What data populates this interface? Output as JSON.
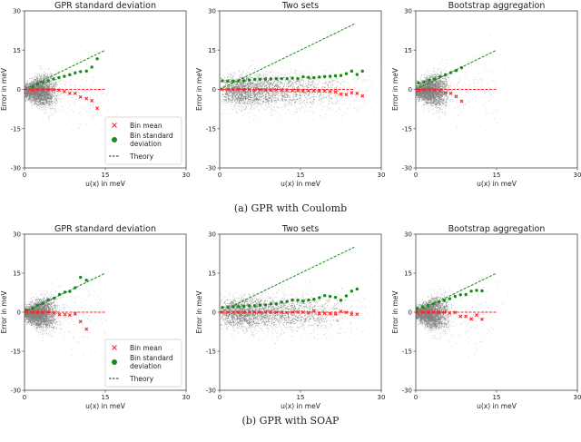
{
  "colors": {
    "scatter": "#808080",
    "bin_mean": "#ff2020",
    "bin_std": "#1a8a1a",
    "theory_std": "#1a8a1a",
    "theory_mean": "#ff2020"
  },
  "captions": [
    "(a) GPR with Coulomb",
    "(b) GPR with SOAP"
  ],
  "legend": {
    "bin_mean": "Bin mean",
    "bin_std_line1": "Bin standard",
    "bin_std_line2": "deviation",
    "theory": "Theory"
  },
  "chart_data": [
    {
      "type": "scatter",
      "row": "a",
      "title": "GPR standard deviation",
      "xlabel": "u(x) in meV",
      "ylabel": "Error in meV",
      "xlim": [
        0,
        30
      ],
      "ylim": [
        -30,
        30
      ],
      "xticks": [
        "0",
        "15",
        "30"
      ],
      "yticks": [
        "30",
        "15",
        "0",
        "-15",
        "-30"
      ],
      "legend": "bottom-right",
      "theory_xmax": 15,
      "bin_x": [
        1.5,
        2.4,
        3.4,
        4.4,
        5.4,
        6.4,
        7.4,
        8.4,
        9.4,
        10.4,
        11.5,
        12.5,
        13.5
      ],
      "bin_std": [
        1.0,
        2.1,
        2.7,
        3.3,
        4.0,
        4.5,
        5.0,
        5.6,
        6.3,
        6.8,
        7.0,
        8.5,
        11.7
      ],
      "bin_mean": [
        -0.3,
        -0.1,
        0,
        -0.1,
        -0.1,
        -0.3,
        -0.8,
        -1.5,
        -1.5,
        -2.9,
        -3.5,
        -4.3,
        -7.2
      ]
    },
    {
      "type": "scatter",
      "row": "a",
      "title": "Two sets",
      "xlabel": "u(x) in meV",
      "ylabel": "Error in meV",
      "xlim": [
        0,
        30
      ],
      "ylim": [
        -30,
        30
      ],
      "xticks": [
        "0",
        "15",
        "30"
      ],
      "yticks": [
        "30",
        "15",
        "0",
        "-15",
        "-30"
      ],
      "theory_xmax": 25,
      "bin_x": [
        0.5,
        1.5,
        2.5,
        3.5,
        4.5,
        5.5,
        6.5,
        7.5,
        8.5,
        9.5,
        10.5,
        11.5,
        12.5,
        13.5,
        14.5,
        15.5,
        16.5,
        17.5,
        18.5,
        19.5,
        20.5,
        21.5,
        22.5,
        23.5,
        24.5,
        25.5,
        26.5
      ],
      "bin_std": [
        3.3,
        3.2,
        3.2,
        3.3,
        3.3,
        3.6,
        3.8,
        3.9,
        3.9,
        4.0,
        4.1,
        4.1,
        4.1,
        4.3,
        4.1,
        4.8,
        4.6,
        4.5,
        4.7,
        4.9,
        5.0,
        5.2,
        5.3,
        6.0,
        7.0,
        5.7,
        7.0
      ],
      "bin_mean": [
        0,
        0,
        0,
        0,
        -0.1,
        -0.1,
        -0.2,
        -0.1,
        -0.2,
        -0.2,
        -0.2,
        -0.3,
        -0.3,
        -0.4,
        -0.4,
        -0.6,
        -0.5,
        -0.6,
        -0.6,
        -0.6,
        -0.8,
        -1.0,
        -1.8,
        -2.0,
        -1.3,
        -1.5,
        -2.5
      ]
    },
    {
      "type": "scatter",
      "row": "a",
      "title": "Bootstrap aggregation",
      "xlabel": "u(x) in meV",
      "ylabel": "Error in meV",
      "xlim": [
        0,
        30
      ],
      "ylim": [
        -30,
        30
      ],
      "xticks": [
        "0",
        "15",
        "30"
      ],
      "yticks": [
        "30",
        "15",
        "0",
        "-15",
        "-30"
      ],
      "theory_xmax": 15,
      "bin_x": [
        0.5,
        1.5,
        2.5,
        3.5,
        4.5,
        5.5,
        6.5,
        7.5,
        8.5
      ],
      "bin_std": [
        2.5,
        2.9,
        3.5,
        4.0,
        4.8,
        5.6,
        6.4,
        7.2,
        8.3
      ],
      "bin_mean": [
        -0.3,
        -0.1,
        -0.1,
        -0.2,
        -0.6,
        -1.3,
        -1.5,
        -2.7,
        -4.5
      ]
    },
    {
      "type": "scatter",
      "row": "b",
      "title": "GPR standard deviation",
      "xlabel": "u(x) in meV",
      "ylabel": "Error in meV",
      "xlim": [
        0,
        30
      ],
      "ylim": [
        -30,
        30
      ],
      "xticks": [
        "0",
        "15",
        "30"
      ],
      "yticks": [
        "30",
        "15",
        "0",
        "-15",
        "-30"
      ],
      "legend": "bottom-right",
      "theory_xmax": 15,
      "bin_x": [
        0.4,
        1.5,
        2.4,
        3.4,
        4.4,
        5.5,
        6.5,
        7.5,
        8.4,
        9.4,
        10.4,
        11.5
      ],
      "bin_std": [
        0.8,
        1.5,
        2.6,
        3.4,
        4.7,
        5.4,
        6.8,
        7.7,
        8.0,
        9.4,
        13.4,
        12.3
      ],
      "bin_mean": [
        0,
        0,
        0,
        0,
        0,
        -0.3,
        -0.9,
        -0.9,
        -1.1,
        -0.7,
        -3.6,
        -6.5
      ]
    },
    {
      "type": "scatter",
      "row": "b",
      "title": "Two sets",
      "xlabel": "u(x) in meV",
      "ylabel": "Error in meV",
      "xlim": [
        0,
        30
      ],
      "ylim": [
        -30,
        30
      ],
      "xticks": [
        "0",
        "15",
        "30"
      ],
      "yticks": [
        "30",
        "15",
        "0",
        "-15",
        "-30"
      ],
      "theory_xmax": 25,
      "bin_x": [
        0.5,
        1.5,
        2.5,
        3.5,
        4.5,
        5.5,
        6.5,
        7.5,
        8.5,
        9.5,
        10.5,
        11.5,
        12.5,
        13.5,
        14.5,
        15.5,
        16.5,
        17.5,
        18.5,
        19.5,
        20.5,
        21.5,
        22.5,
        23.5,
        24.5,
        25.5
      ],
      "bin_std": [
        1.8,
        1.9,
        2.1,
        2.2,
        2.3,
        2.5,
        2.5,
        2.7,
        2.8,
        3.2,
        3.2,
        3.9,
        4.1,
        4.7,
        4.6,
        4.3,
        4.7,
        5.0,
        5.6,
        6.4,
        6.1,
        5.7,
        4.6,
        6.3,
        8.1,
        8.9
      ],
      "bin_mean": [
        0,
        0,
        0,
        0,
        0,
        0,
        0,
        0,
        0,
        0,
        0,
        0,
        -0.2,
        0,
        0,
        0,
        -0.2,
        0.5,
        -0.5,
        -0.4,
        -0.5,
        -0.7,
        0.3,
        -0.1,
        -0.8,
        -0.8
      ]
    },
    {
      "type": "scatter",
      "row": "b",
      "title": "Bootstrap aggregation",
      "xlabel": "u(x) in meV",
      "ylabel": "Error in meV",
      "xlim": [
        0,
        30
      ],
      "ylim": [
        -30,
        30
      ],
      "xticks": [
        "0",
        "15",
        "30"
      ],
      "yticks": [
        "30",
        "15",
        "0",
        "-15",
        "-30"
      ],
      "theory_xmax": 15,
      "bin_x": [
        0.3,
        1.3,
        2.3,
        3.3,
        4.3,
        5.3,
        6.3,
        7.3,
        8.3,
        9.3,
        10.3,
        11.3,
        12.3
      ],
      "bin_std": [
        1.4,
        2.0,
        2.6,
        3.2,
        4.0,
        4.6,
        5.2,
        6.1,
        6.7,
        6.8,
        8.1,
        8.4,
        8.2
      ],
      "bin_mean": [
        0,
        0,
        0,
        0,
        0,
        -0.1,
        -0.3,
        -0.1,
        -1.6,
        -1.6,
        -2.6,
        -1.1,
        -2.7
      ]
    }
  ]
}
